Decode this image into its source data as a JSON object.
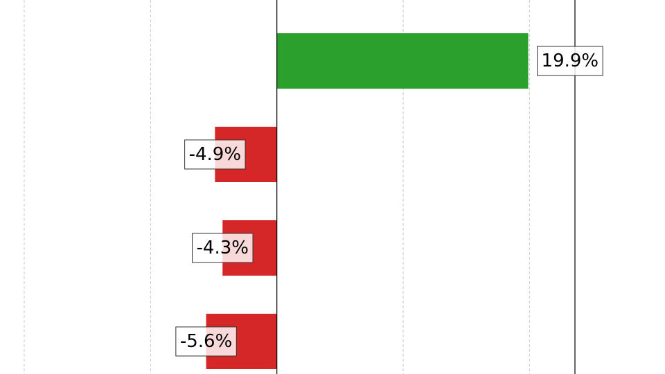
{
  "chart_data": {
    "type": "bar",
    "orientation": "horizontal",
    "title": "",
    "xlabel": "",
    "ylabel": "",
    "values": [
      19.9,
      -4.9,
      -4.3,
      -5.6
    ],
    "labels": [
      "19.9%",
      "-4.9%",
      "-4.3%",
      "-5.6%"
    ],
    "xlim": [
      -20,
      23.6
    ],
    "grid_x": [
      -20,
      -10,
      10,
      20
    ],
    "grid": true,
    "legend": "none",
    "colors": {
      "positive": "#2ca02c",
      "negative": "#d62728"
    }
  }
}
